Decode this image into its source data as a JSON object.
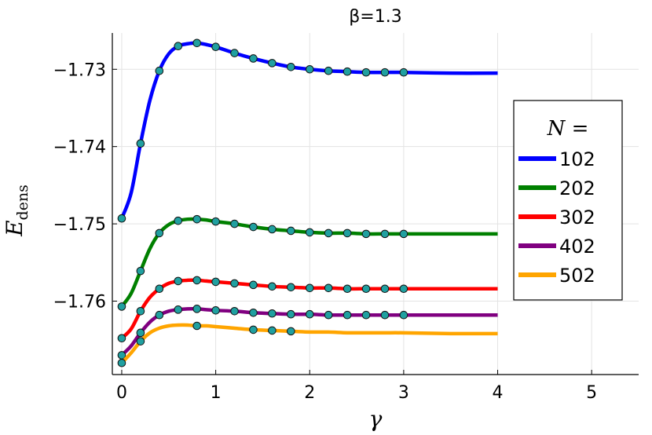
{
  "chart_data": {
    "type": "line",
    "title": "β=1.3",
    "xlabel": "γ",
    "ylabel_main": "E",
    "ylabel_sub": "dens",
    "xlim": [
      -0.1,
      5.5
    ],
    "ylim": [
      -1.7695,
      -1.7253
    ],
    "x_ticks": [
      0,
      1,
      2,
      3,
      4,
      5
    ],
    "x_tick_labels": [
      "0",
      "1",
      "2",
      "3",
      "4",
      "5"
    ],
    "y_ticks": [
      -1.73,
      -1.74,
      -1.75,
      -1.76
    ],
    "y_tick_labels": [
      "−1.73",
      "−1.74",
      "−1.75",
      "−1.76"
    ],
    "grid": true,
    "legend": {
      "title": "N =",
      "placement": "right"
    },
    "marker_color": "#20a0a0",
    "series": [
      {
        "name": "102",
        "color": "#0000ff",
        "line": [
          [
            0,
            -1.7493
          ],
          [
            0.1,
            -1.746
          ],
          [
            0.2,
            -1.7396
          ],
          [
            0.3,
            -1.734
          ],
          [
            0.4,
            -1.7302
          ],
          [
            0.5,
            -1.728
          ],
          [
            0.6,
            -1.727
          ],
          [
            0.7,
            -1.7267
          ],
          [
            0.8,
            -1.7266
          ],
          [
            0.9,
            -1.7268
          ],
          [
            1.0,
            -1.7271
          ],
          [
            1.2,
            -1.7279
          ],
          [
            1.4,
            -1.7286
          ],
          [
            1.6,
            -1.7292
          ],
          [
            1.8,
            -1.7297
          ],
          [
            2.0,
            -1.73
          ],
          [
            2.2,
            -1.7302
          ],
          [
            2.4,
            -1.7303
          ],
          [
            2.6,
            -1.7304
          ],
          [
            2.8,
            -1.7304
          ],
          [
            3.0,
            -1.7304
          ],
          [
            3.5,
            -1.7305
          ],
          [
            4.0,
            -1.7305
          ]
        ],
        "markers": [
          [
            0,
            -1.7493
          ],
          [
            0.2,
            -1.7396
          ],
          [
            0.4,
            -1.7302
          ],
          [
            0.6,
            -1.727
          ],
          [
            0.8,
            -1.7266
          ],
          [
            1.0,
            -1.7271
          ],
          [
            1.2,
            -1.7279
          ],
          [
            1.4,
            -1.7286
          ],
          [
            1.6,
            -1.7292
          ],
          [
            1.8,
            -1.7297
          ],
          [
            2.0,
            -1.73
          ],
          [
            2.2,
            -1.7302
          ],
          [
            2.4,
            -1.7303
          ],
          [
            2.6,
            -1.7304
          ],
          [
            2.8,
            -1.7304
          ],
          [
            3.0,
            -1.7304
          ]
        ]
      },
      {
        "name": "202",
        "color": "#008000",
        "line": [
          [
            0,
            -1.7607
          ],
          [
            0.1,
            -1.759
          ],
          [
            0.2,
            -1.7561
          ],
          [
            0.3,
            -1.7532
          ],
          [
            0.4,
            -1.7512
          ],
          [
            0.5,
            -1.7501
          ],
          [
            0.6,
            -1.7496
          ],
          [
            0.7,
            -1.7494
          ],
          [
            0.8,
            -1.7494
          ],
          [
            0.9,
            -1.7495
          ],
          [
            1.0,
            -1.7497
          ],
          [
            1.2,
            -1.75
          ],
          [
            1.4,
            -1.7504
          ],
          [
            1.6,
            -1.7507
          ],
          [
            1.8,
            -1.7509
          ],
          [
            2.0,
            -1.7511
          ],
          [
            2.2,
            -1.7512
          ],
          [
            2.4,
            -1.7512
          ],
          [
            2.6,
            -1.7513
          ],
          [
            2.8,
            -1.7513
          ],
          [
            3.0,
            -1.7513
          ],
          [
            3.5,
            -1.7513
          ],
          [
            4.0,
            -1.7513
          ]
        ],
        "markers": [
          [
            0,
            -1.7607
          ],
          [
            0.2,
            -1.7561
          ],
          [
            0.4,
            -1.7512
          ],
          [
            0.6,
            -1.7496
          ],
          [
            0.8,
            -1.7494
          ],
          [
            1.0,
            -1.7497
          ],
          [
            1.2,
            -1.75
          ],
          [
            1.4,
            -1.7504
          ],
          [
            1.6,
            -1.7507
          ],
          [
            1.8,
            -1.7509
          ],
          [
            2.0,
            -1.7511
          ],
          [
            2.2,
            -1.7512
          ],
          [
            2.4,
            -1.7512
          ],
          [
            2.6,
            -1.7513
          ],
          [
            2.8,
            -1.7513
          ],
          [
            3.0,
            -1.7513
          ]
        ]
      },
      {
        "name": "302",
        "color": "#ff0000",
        "line": [
          [
            0,
            -1.7648
          ],
          [
            0.1,
            -1.7636
          ],
          [
            0.2,
            -1.7613
          ],
          [
            0.3,
            -1.7595
          ],
          [
            0.4,
            -1.7584
          ],
          [
            0.5,
            -1.7577
          ],
          [
            0.6,
            -1.7574
          ],
          [
            0.7,
            -1.7573
          ],
          [
            0.8,
            -1.7573
          ],
          [
            0.9,
            -1.7574
          ],
          [
            1.0,
            -1.7575
          ],
          [
            1.2,
            -1.7577
          ],
          [
            1.4,
            -1.7579
          ],
          [
            1.6,
            -1.7581
          ],
          [
            1.8,
            -1.7582
          ],
          [
            2.0,
            -1.7583
          ],
          [
            2.2,
            -1.7583
          ],
          [
            2.4,
            -1.7584
          ],
          [
            2.6,
            -1.7584
          ],
          [
            2.8,
            -1.7584
          ],
          [
            3.0,
            -1.7584
          ],
          [
            3.5,
            -1.7584
          ],
          [
            4.0,
            -1.7584
          ]
        ],
        "markers": [
          [
            0,
            -1.7648
          ],
          [
            0.2,
            -1.7613
          ],
          [
            0.4,
            -1.7584
          ],
          [
            0.6,
            -1.7574
          ],
          [
            0.8,
            -1.7573
          ],
          [
            1.0,
            -1.7575
          ],
          [
            1.2,
            -1.7577
          ],
          [
            1.4,
            -1.7579
          ],
          [
            1.6,
            -1.7581
          ],
          [
            1.8,
            -1.7582
          ],
          [
            2.0,
            -1.7583
          ],
          [
            2.2,
            -1.7583
          ],
          [
            2.4,
            -1.7584
          ],
          [
            2.6,
            -1.7584
          ],
          [
            2.8,
            -1.7584
          ],
          [
            3.0,
            -1.7584
          ]
        ]
      },
      {
        "name": "402",
        "color": "#800080",
        "line": [
          [
            0,
            -1.767
          ],
          [
            0.1,
            -1.7658
          ],
          [
            0.2,
            -1.7641
          ],
          [
            0.3,
            -1.7627
          ],
          [
            0.4,
            -1.7618
          ],
          [
            0.5,
            -1.7613
          ],
          [
            0.6,
            -1.7611
          ],
          [
            0.7,
            -1.761
          ],
          [
            0.8,
            -1.761
          ],
          [
            0.9,
            -1.7611
          ],
          [
            1.0,
            -1.7612
          ],
          [
            1.2,
            -1.7613
          ],
          [
            1.4,
            -1.7615
          ],
          [
            1.6,
            -1.7616
          ],
          [
            1.8,
            -1.7617
          ],
          [
            2.0,
            -1.7617
          ],
          [
            2.2,
            -1.7618
          ],
          [
            2.4,
            -1.7618
          ],
          [
            2.6,
            -1.7618
          ],
          [
            2.8,
            -1.7618
          ],
          [
            3.0,
            -1.7618
          ],
          [
            3.5,
            -1.7618
          ],
          [
            4.0,
            -1.7618
          ]
        ],
        "markers": [
          [
            0,
            -1.767
          ],
          [
            0.2,
            -1.7641
          ],
          [
            0.4,
            -1.7618
          ],
          [
            0.6,
            -1.7611
          ],
          [
            0.8,
            -1.761
          ],
          [
            1.0,
            -1.7612
          ],
          [
            1.2,
            -1.7613
          ],
          [
            1.4,
            -1.7615
          ],
          [
            1.6,
            -1.7616
          ],
          [
            1.8,
            -1.7617
          ],
          [
            2.0,
            -1.7617
          ],
          [
            2.2,
            -1.7618
          ],
          [
            2.4,
            -1.7618
          ],
          [
            2.6,
            -1.7618
          ],
          [
            2.8,
            -1.7618
          ],
          [
            3.0,
            -1.7618
          ]
        ]
      },
      {
        "name": "502",
        "color": "#ffa500",
        "line": [
          [
            0,
            -1.768
          ],
          [
            0.1,
            -1.7667
          ],
          [
            0.2,
            -1.7652
          ],
          [
            0.3,
            -1.7641
          ],
          [
            0.4,
            -1.7635
          ],
          [
            0.5,
            -1.7632
          ],
          [
            0.6,
            -1.7631
          ],
          [
            0.7,
            -1.7631
          ],
          [
            0.8,
            -1.7632
          ],
          [
            0.9,
            -1.7632
          ],
          [
            1.0,
            -1.7633
          ],
          [
            1.2,
            -1.7635
          ],
          [
            1.4,
            -1.7637
          ],
          [
            1.6,
            -1.7638
          ],
          [
            1.8,
            -1.7639
          ],
          [
            2.0,
            -1.764
          ],
          [
            2.2,
            -1.764
          ],
          [
            2.4,
            -1.7641
          ],
          [
            2.6,
            -1.7641
          ],
          [
            2.8,
            -1.7641
          ],
          [
            3.0,
            -1.7641
          ],
          [
            3.5,
            -1.7642
          ],
          [
            4.0,
            -1.7642
          ]
        ],
        "markers": [
          [
            0,
            -1.768
          ],
          [
            0.2,
            -1.7652
          ],
          [
            0.8,
            -1.7632
          ],
          [
            1.4,
            -1.7637
          ],
          [
            1.6,
            -1.7638
          ],
          [
            1.8,
            -1.7639
          ]
        ]
      }
    ]
  }
}
